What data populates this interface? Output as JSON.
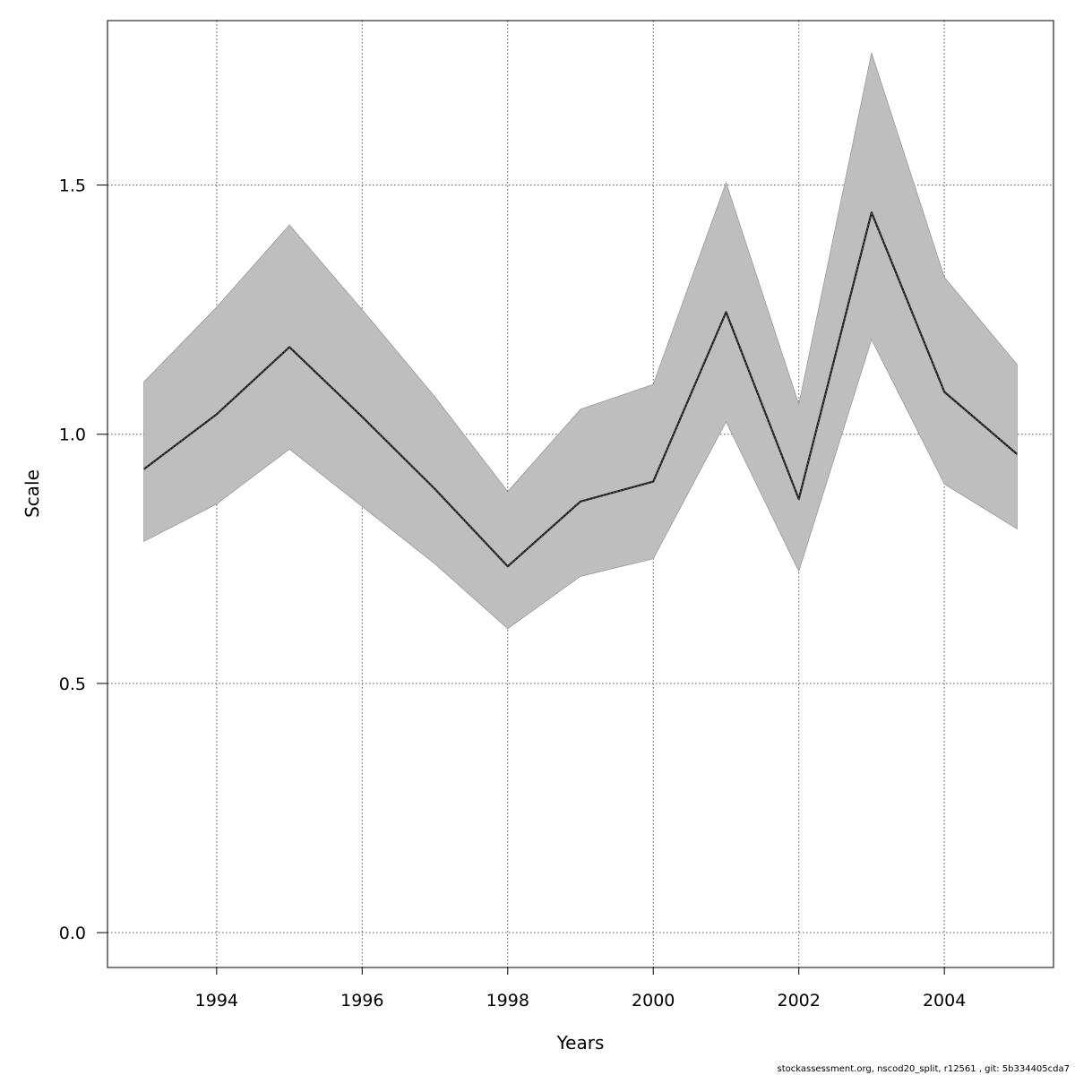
{
  "chart_data": {
    "type": "line",
    "title": "",
    "xlabel": "Years",
    "ylabel": "Scale",
    "xlim": [
      1992.5,
      2005.5
    ],
    "ylim": [
      -0.07,
      1.83
    ],
    "x_ticks": [
      1994,
      1996,
      1998,
      2000,
      2002,
      2004
    ],
    "x_tick_labels": [
      "1994",
      "1996",
      "1998",
      "2000",
      "2002",
      "2004"
    ],
    "y_ticks": [
      0.0,
      0.5,
      1.0,
      1.5
    ],
    "y_tick_labels": [
      "0.0",
      "0.5",
      "1.0",
      "1.5"
    ],
    "grid": true,
    "x": [
      1993,
      1994,
      1995,
      1996,
      1997,
      1998,
      1999,
      2000,
      2001,
      2002,
      2003,
      2004,
      2005
    ],
    "series": [
      {
        "values": [
          0.93,
          1.04,
          1.175,
          1.035,
          0.89,
          0.735,
          0.865,
          0.905,
          1.245,
          0.87,
          1.445,
          1.085,
          0.96
        ],
        "lower": [
          0.785,
          0.86,
          0.97,
          0.855,
          0.74,
          0.61,
          0.715,
          0.75,
          1.025,
          0.725,
          1.19,
          0.9,
          0.81
        ],
        "upper": [
          1.105,
          1.255,
          1.42,
          1.25,
          1.075,
          0.885,
          1.05,
          1.1,
          1.505,
          1.06,
          1.765,
          1.315,
          1.14
        ]
      }
    ],
    "colors": {
      "band": "#bebebe",
      "band_edge": "#9a9a9a",
      "line": "#1a1a1a",
      "grid": "#555555"
    }
  },
  "footer": "stockassessment.org, nscod20_split, r12561 , git: 5b334405cda7"
}
